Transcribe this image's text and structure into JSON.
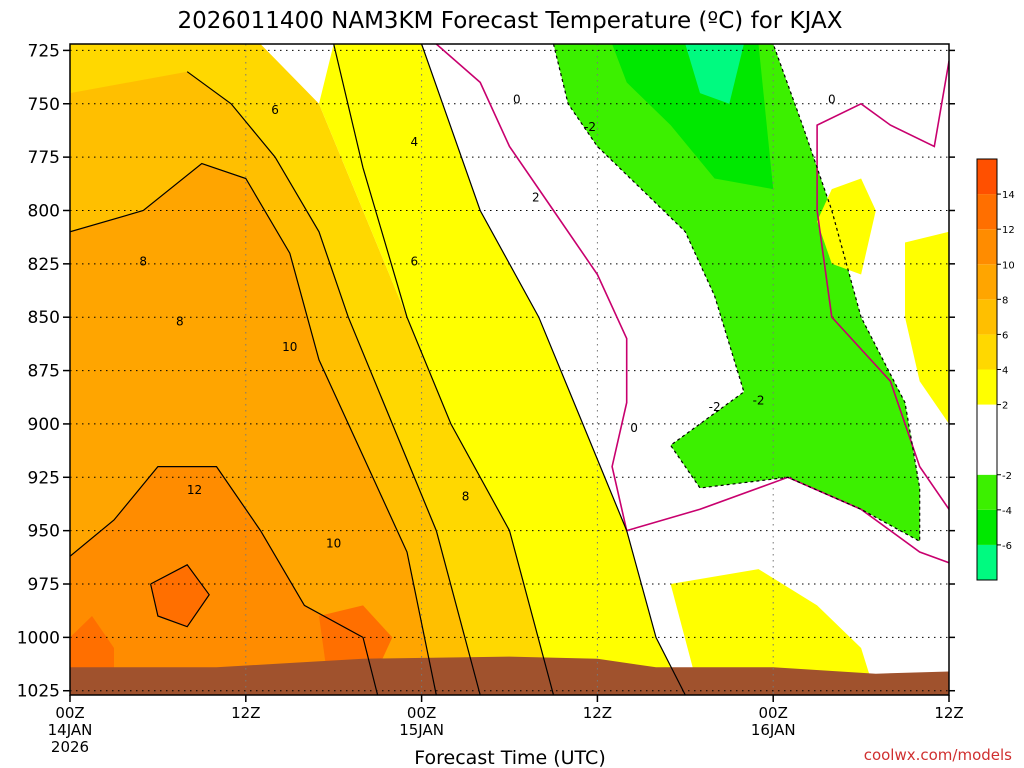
{
  "chart_data": {
    "type": "heatmap",
    "title": "2026011400 NAM3KM Forecast Temperature (ºC) for KJAX",
    "xlabel": "Forecast Time (UTC)",
    "ylabel": "",
    "credit": "coolwx.com/models",
    "y_axis": {
      "units": "hPa",
      "inverted": true,
      "ylim": [
        1027,
        722
      ],
      "ticks": [
        "725",
        "750",
        "775",
        "800",
        "825",
        "850",
        "875",
        "900",
        "925",
        "950",
        "975",
        "1000",
        "1025"
      ],
      "tick_values": [
        725,
        750,
        775,
        800,
        825,
        850,
        875,
        900,
        925,
        950,
        975,
        1000,
        1025
      ]
    },
    "x_axis": {
      "units": "forecast hours from 2026-01-14 00Z",
      "xlim": [
        0,
        60
      ],
      "ticks": [
        {
          "hour": 0,
          "line1": "00Z",
          "line2": "14JAN",
          "line3": "2026"
        },
        {
          "hour": 12,
          "line1": "12Z",
          "line2": "",
          "line3": ""
        },
        {
          "hour": 24,
          "line1": "00Z",
          "line2": "15JAN",
          "line3": ""
        },
        {
          "hour": 36,
          "line1": "12Z",
          "line2": "",
          "line3": ""
        },
        {
          "hour": 48,
          "line1": "00Z",
          "line2": "16JAN",
          "line3": ""
        },
        {
          "hour": 60,
          "line1": "12Z",
          "line2": "",
          "line3": ""
        }
      ]
    },
    "grid": true,
    "colorbar": {
      "placement": "right",
      "levels": [
        {
          "lo": -8,
          "hi": -6,
          "color": "#00fa80"
        },
        {
          "lo": -6,
          "hi": -4,
          "color": "#00e800"
        },
        {
          "lo": -4,
          "hi": -2,
          "color": "#3cf000"
        },
        {
          "lo": -2,
          "hi": 2,
          "color": "#ffffff"
        },
        {
          "lo": 2,
          "hi": 4,
          "color": "#ffff00"
        },
        {
          "lo": 4,
          "hi": 6,
          "color": "#ffd800"
        },
        {
          "lo": 6,
          "hi": 8,
          "color": "#ffbf00"
        },
        {
          "lo": 8,
          "hi": 10,
          "color": "#ffa500"
        },
        {
          "lo": 10,
          "hi": 12,
          "color": "#ff8c00"
        },
        {
          "lo": 12,
          "hi": 14,
          "color": "#ff6f00"
        },
        {
          "lo": 14,
          "hi": 16,
          "color": "#ff5000"
        }
      ],
      "tick_labels": [
        "-6",
        "-4",
        "-2",
        "2",
        "4",
        "6",
        "8",
        "10",
        "12",
        "14"
      ],
      "tick_values": [
        -6,
        -4,
        -2,
        2,
        4,
        6,
        8,
        10,
        12,
        14
      ]
    },
    "regions": [
      {
        "name": "5",
        "value": 5,
        "points": [
          [
            0,
            722
          ],
          [
            13,
            722
          ],
          [
            17,
            750
          ],
          [
            20,
            800
          ],
          [
            23,
            850
          ],
          [
            26,
            900
          ],
          [
            30,
            950
          ],
          [
            33,
            1027
          ],
          [
            0,
            1027
          ]
        ]
      },
      {
        "name": "3",
        "value": 3,
        "points": [
          [
            18,
            722
          ],
          [
            24,
            722
          ],
          [
            28,
            800
          ],
          [
            32,
            850
          ],
          [
            35,
            900
          ],
          [
            38,
            950
          ],
          [
            40,
            1000
          ],
          [
            42,
            1027
          ],
          [
            33,
            1027
          ],
          [
            30,
            950
          ],
          [
            26,
            900
          ],
          [
            23,
            850
          ],
          [
            20,
            800
          ],
          [
            17,
            750
          ]
        ]
      },
      {
        "name": "7",
        "value": 7,
        "points": [
          [
            0,
            745
          ],
          [
            8,
            735
          ],
          [
            11,
            750
          ],
          [
            14,
            775
          ],
          [
            17,
            810
          ],
          [
            19,
            850
          ],
          [
            22,
            900
          ],
          [
            25,
            950
          ],
          [
            28,
            1027
          ],
          [
            0,
            1027
          ]
        ]
      },
      {
        "name": "9",
        "value": 9,
        "points": [
          [
            0,
            810
          ],
          [
            5,
            800
          ],
          [
            9,
            778
          ],
          [
            12,
            785
          ],
          [
            15,
            820
          ],
          [
            17,
            870
          ],
          [
            20,
            915
          ],
          [
            23,
            960
          ],
          [
            25,
            1027
          ],
          [
            0,
            1027
          ]
        ]
      },
      {
        "name": "11",
        "value": 11,
        "points": [
          [
            0,
            962
          ],
          [
            3,
            945
          ],
          [
            6,
            920
          ],
          [
            10,
            920
          ],
          [
            13,
            950
          ],
          [
            16,
            985
          ],
          [
            20,
            1000
          ],
          [
            21,
            1027
          ],
          [
            0,
            1027
          ]
        ]
      },
      {
        "name": "13",
        "value": 13,
        "points": [
          [
            0,
            1000
          ],
          [
            1.5,
            990
          ],
          [
            3,
            1005
          ],
          [
            3,
            1027
          ],
          [
            0,
            1027
          ]
        ]
      },
      {
        "name": "13",
        "value": 13,
        "points": [
          [
            5.5,
            975
          ],
          [
            8,
            966
          ],
          [
            9.5,
            980
          ],
          [
            8,
            995
          ],
          [
            6,
            990
          ]
        ]
      },
      {
        "name": "13",
        "value": 13,
        "points": [
          [
            17,
            990
          ],
          [
            20,
            985
          ],
          [
            22,
            1000
          ],
          [
            21,
            1015
          ],
          [
            17.5,
            1015
          ]
        ]
      },
      {
        "name": "3",
        "value": 3,
        "points": [
          [
            41,
            975
          ],
          [
            47,
            968
          ],
          [
            51,
            985
          ],
          [
            54,
            1005
          ],
          [
            55,
            1027
          ],
          [
            43,
            1027
          ]
        ]
      },
      {
        "name": "-3",
        "value": -3,
        "points": [
          [
            33,
            722
          ],
          [
            48,
            722
          ],
          [
            50,
            760
          ],
          [
            52,
            800
          ],
          [
            54,
            850
          ],
          [
            57,
            890
          ],
          [
            58,
            930
          ],
          [
            58,
            955
          ],
          [
            54,
            940
          ],
          [
            49,
            925
          ],
          [
            43,
            930
          ],
          [
            41,
            910
          ],
          [
            46,
            885
          ],
          [
            44,
            840
          ],
          [
            42,
            810
          ],
          [
            39,
            790
          ],
          [
            36,
            770
          ],
          [
            34,
            750
          ]
        ]
      },
      {
        "name": "-5",
        "value": -5,
        "points": [
          [
            37,
            722
          ],
          [
            47,
            722
          ],
          [
            48,
            790
          ],
          [
            44,
            785
          ],
          [
            41,
            760
          ],
          [
            38,
            740
          ]
        ]
      },
      {
        "name": "-7",
        "value": -7,
        "points": [
          [
            42,
            722
          ],
          [
            46,
            722
          ],
          [
            45,
            750
          ],
          [
            43,
            745
          ]
        ]
      },
      {
        "name": "3",
        "value": 3,
        "points": [
          [
            52,
            790
          ],
          [
            54,
            785
          ],
          [
            55,
            800
          ],
          [
            54,
            830
          ],
          [
            52,
            825
          ],
          [
            51,
            805
          ]
        ]
      },
      {
        "name": "3",
        "value": 3,
        "points": [
          [
            57,
            815
          ],
          [
            60,
            810
          ],
          [
            60,
            900
          ],
          [
            58,
            880
          ],
          [
            57,
            850
          ]
        ]
      }
    ],
    "contours": [
      {
        "label": "0",
        "color": "#c8006e",
        "dashed": false,
        "points": [
          [
            25,
            722
          ],
          [
            28,
            740
          ],
          [
            30,
            770
          ],
          [
            33,
            800
          ],
          [
            36,
            830
          ],
          [
            38,
            860
          ],
          [
            38,
            890
          ],
          [
            37,
            920
          ],
          [
            38,
            950
          ],
          [
            43,
            940
          ],
          [
            49,
            925
          ],
          [
            54,
            940
          ],
          [
            58,
            960
          ],
          [
            60,
            965
          ]
        ]
      },
      {
        "label": "0",
        "color": "#c8006e",
        "dashed": false,
        "points": [
          [
            60,
            730
          ],
          [
            59,
            770
          ],
          [
            56,
            760
          ],
          [
            54,
            750
          ],
          [
            51,
            760
          ],
          [
            51,
            800
          ],
          [
            52,
            850
          ],
          [
            56,
            880
          ],
          [
            58,
            920
          ],
          [
            60,
            940
          ]
        ]
      },
      {
        "label": "-2",
        "color": "#000000",
        "dashed": true,
        "points": [
          [
            33,
            722
          ],
          [
            34,
            750
          ],
          [
            36,
            770
          ],
          [
            39,
            790
          ],
          [
            42,
            810
          ],
          [
            44,
            840
          ],
          [
            46,
            885
          ],
          [
            41,
            910
          ],
          [
            43,
            930
          ],
          [
            49,
            925
          ],
          [
            54,
            940
          ],
          [
            58,
            955
          ],
          [
            58,
            930
          ],
          [
            57,
            890
          ],
          [
            54,
            850
          ],
          [
            52,
            800
          ],
          [
            50,
            760
          ],
          [
            48,
            722
          ]
        ]
      },
      {
        "label": "2",
        "color": "#000000",
        "dashed": false,
        "points": [
          [
            24,
            722
          ],
          [
            28,
            800
          ],
          [
            32,
            850
          ],
          [
            35,
            900
          ],
          [
            38,
            950
          ],
          [
            40,
            1000
          ],
          [
            42,
            1027
          ]
        ]
      },
      {
        "label": "4",
        "color": "#000000",
        "dashed": false,
        "points": [
          [
            18,
            722
          ],
          [
            20,
            780
          ],
          [
            23,
            850
          ],
          [
            26,
            900
          ],
          [
            30,
            950
          ],
          [
            33,
            1027
          ]
        ]
      },
      {
        "label": "6",
        "color": "#000000",
        "dashed": false,
        "points": [
          [
            8,
            735
          ],
          [
            11,
            750
          ],
          [
            14,
            775
          ],
          [
            17,
            810
          ],
          [
            19,
            850
          ],
          [
            22,
            900
          ],
          [
            25,
            950
          ],
          [
            28,
            1027
          ]
        ]
      },
      {
        "label": "8",
        "color": "#000000",
        "dashed": false,
        "points": [
          [
            0,
            810
          ],
          [
            5,
            800
          ],
          [
            9,
            778
          ],
          [
            12,
            785
          ],
          [
            15,
            820
          ],
          [
            17,
            870
          ],
          [
            20,
            915
          ],
          [
            23,
            960
          ],
          [
            25,
            1027
          ]
        ]
      },
      {
        "label": "10",
        "color": "#000000",
        "dashed": false,
        "points": [
          [
            0,
            962
          ],
          [
            3,
            945
          ],
          [
            6,
            920
          ],
          [
            10,
            920
          ],
          [
            13,
            950
          ],
          [
            16,
            985
          ],
          [
            20,
            1000
          ],
          [
            21,
            1027
          ]
        ]
      },
      {
        "label": "12",
        "color": "#000000",
        "dashed": false,
        "points": [
          [
            5.5,
            975
          ],
          [
            8,
            966
          ],
          [
            9.5,
            980
          ],
          [
            8,
            995
          ],
          [
            6,
            990
          ],
          [
            5.5,
            975
          ]
        ]
      }
    ],
    "contour_labels": [
      {
        "text": "6",
        "x": 14,
        "y": 753
      },
      {
        "text": "4",
        "x": 23.5,
        "y": 768
      },
      {
        "text": "6",
        "x": 23.5,
        "y": 824
      },
      {
        "text": "0",
        "x": 30.5,
        "y": 748
      },
      {
        "text": "-2",
        "x": 35.5,
        "y": 761
      },
      {
        "text": "2",
        "x": 31.8,
        "y": 794
      },
      {
        "text": "8",
        "x": 5,
        "y": 824
      },
      {
        "text": "8",
        "x": 7.5,
        "y": 852
      },
      {
        "text": "10",
        "x": 15,
        "y": 864
      },
      {
        "text": "12",
        "x": 8.5,
        "y": 931
      },
      {
        "text": "10",
        "x": 18,
        "y": 956
      },
      {
        "text": "8",
        "x": 27,
        "y": 934
      },
      {
        "text": "0",
        "x": 38.5,
        "y": 902
      },
      {
        "text": "-2",
        "x": 44,
        "y": 892
      },
      {
        "text": "-2",
        "x": 47,
        "y": 889
      },
      {
        "text": "0",
        "x": 52,
        "y": 748
      }
    ],
    "terrain": {
      "color": "#a0522d",
      "surface": [
        [
          0,
          1014
        ],
        [
          10,
          1014
        ],
        [
          15,
          1012
        ],
        [
          20,
          1010
        ],
        [
          30,
          1009
        ],
        [
          36,
          1010
        ],
        [
          40,
          1014
        ],
        [
          48,
          1014
        ],
        [
          55,
          1017
        ],
        [
          60,
          1016
        ]
      ]
    }
  }
}
